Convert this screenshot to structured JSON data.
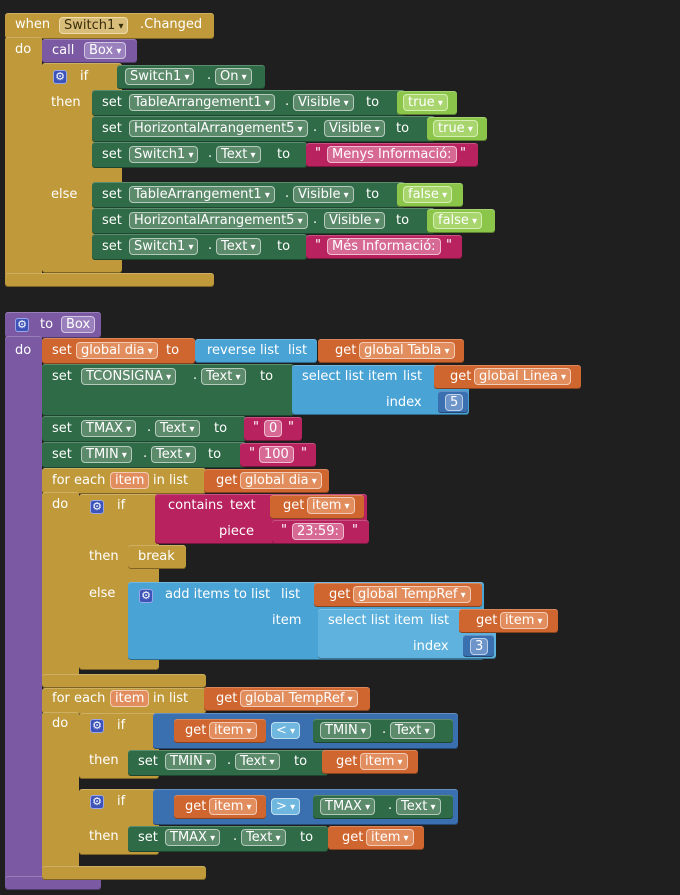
{
  "event": {
    "when": "when",
    "component": "Switch1",
    "changed": ".Changed",
    "do": "do"
  },
  "call": {
    "call": "call",
    "proc": "Box"
  },
  "kw": {
    "if": "if",
    "then": "then",
    "else": "else",
    "do": "do",
    "set": "set",
    "to": "to",
    "get": "get",
    "dot": ".",
    "list": "list",
    "index": "index",
    "item": "item",
    "in_list": "in list",
    "for_each": "for each",
    "break": "break",
    "contains": "contains",
    "text": "text",
    "piece": "piece"
  },
  "cond1": {
    "component": "Switch1",
    "prop": "On"
  },
  "then1": [
    {
      "component": "TableArrangement1",
      "prop": "Visible",
      "value": "true"
    },
    {
      "component": "HorizontalArrangement5",
      "prop": "Visible",
      "value": "true"
    },
    {
      "component": "Switch1",
      "prop": "Text",
      "value": "Menys Informació:"
    }
  ],
  "else1": [
    {
      "component": "TableArrangement1",
      "prop": "Visible",
      "value": "false"
    },
    {
      "component": "HorizontalArrangement5",
      "prop": "Visible",
      "value": "false"
    },
    {
      "component": "Switch1",
      "prop": "Text",
      "value": "Més Informació:"
    }
  ],
  "proc": {
    "to": "to",
    "name": "Box"
  },
  "set_dia": {
    "var": "global dia",
    "fn": "reverse list",
    "arg": "global Tabla"
  },
  "set_tcons": {
    "component": "TCONSIGNA",
    "prop": "Text",
    "fn": "select list item",
    "arg": "global Linea",
    "index": "5"
  },
  "set_tmax": {
    "component": "TMAX",
    "prop": "Text",
    "value": "0"
  },
  "set_tmin": {
    "component": "TMIN",
    "prop": "Text",
    "value": "100"
  },
  "loop1": {
    "var": "item",
    "list": "global dia",
    "piece": "23:59:",
    "add": "add items to list",
    "target": "global TempRef",
    "select": "select list item",
    "index": "3"
  },
  "loop2": {
    "var": "item",
    "list": "global TempRef",
    "if1": {
      "op": "<",
      "component": "TMIN",
      "prop": "Text"
    },
    "if2": {
      "op": ">",
      "component": "TMAX",
      "prop": "Text"
    }
  },
  "colors": {
    "event": "#c09a3a",
    "procedure": "#7c5aa3",
    "component": "#2f6b46",
    "logic": "#8bc54a",
    "variable": "#d0662f",
    "list": "#4aa3d5",
    "text": "#b8225f",
    "math": "#3a6fb0"
  }
}
